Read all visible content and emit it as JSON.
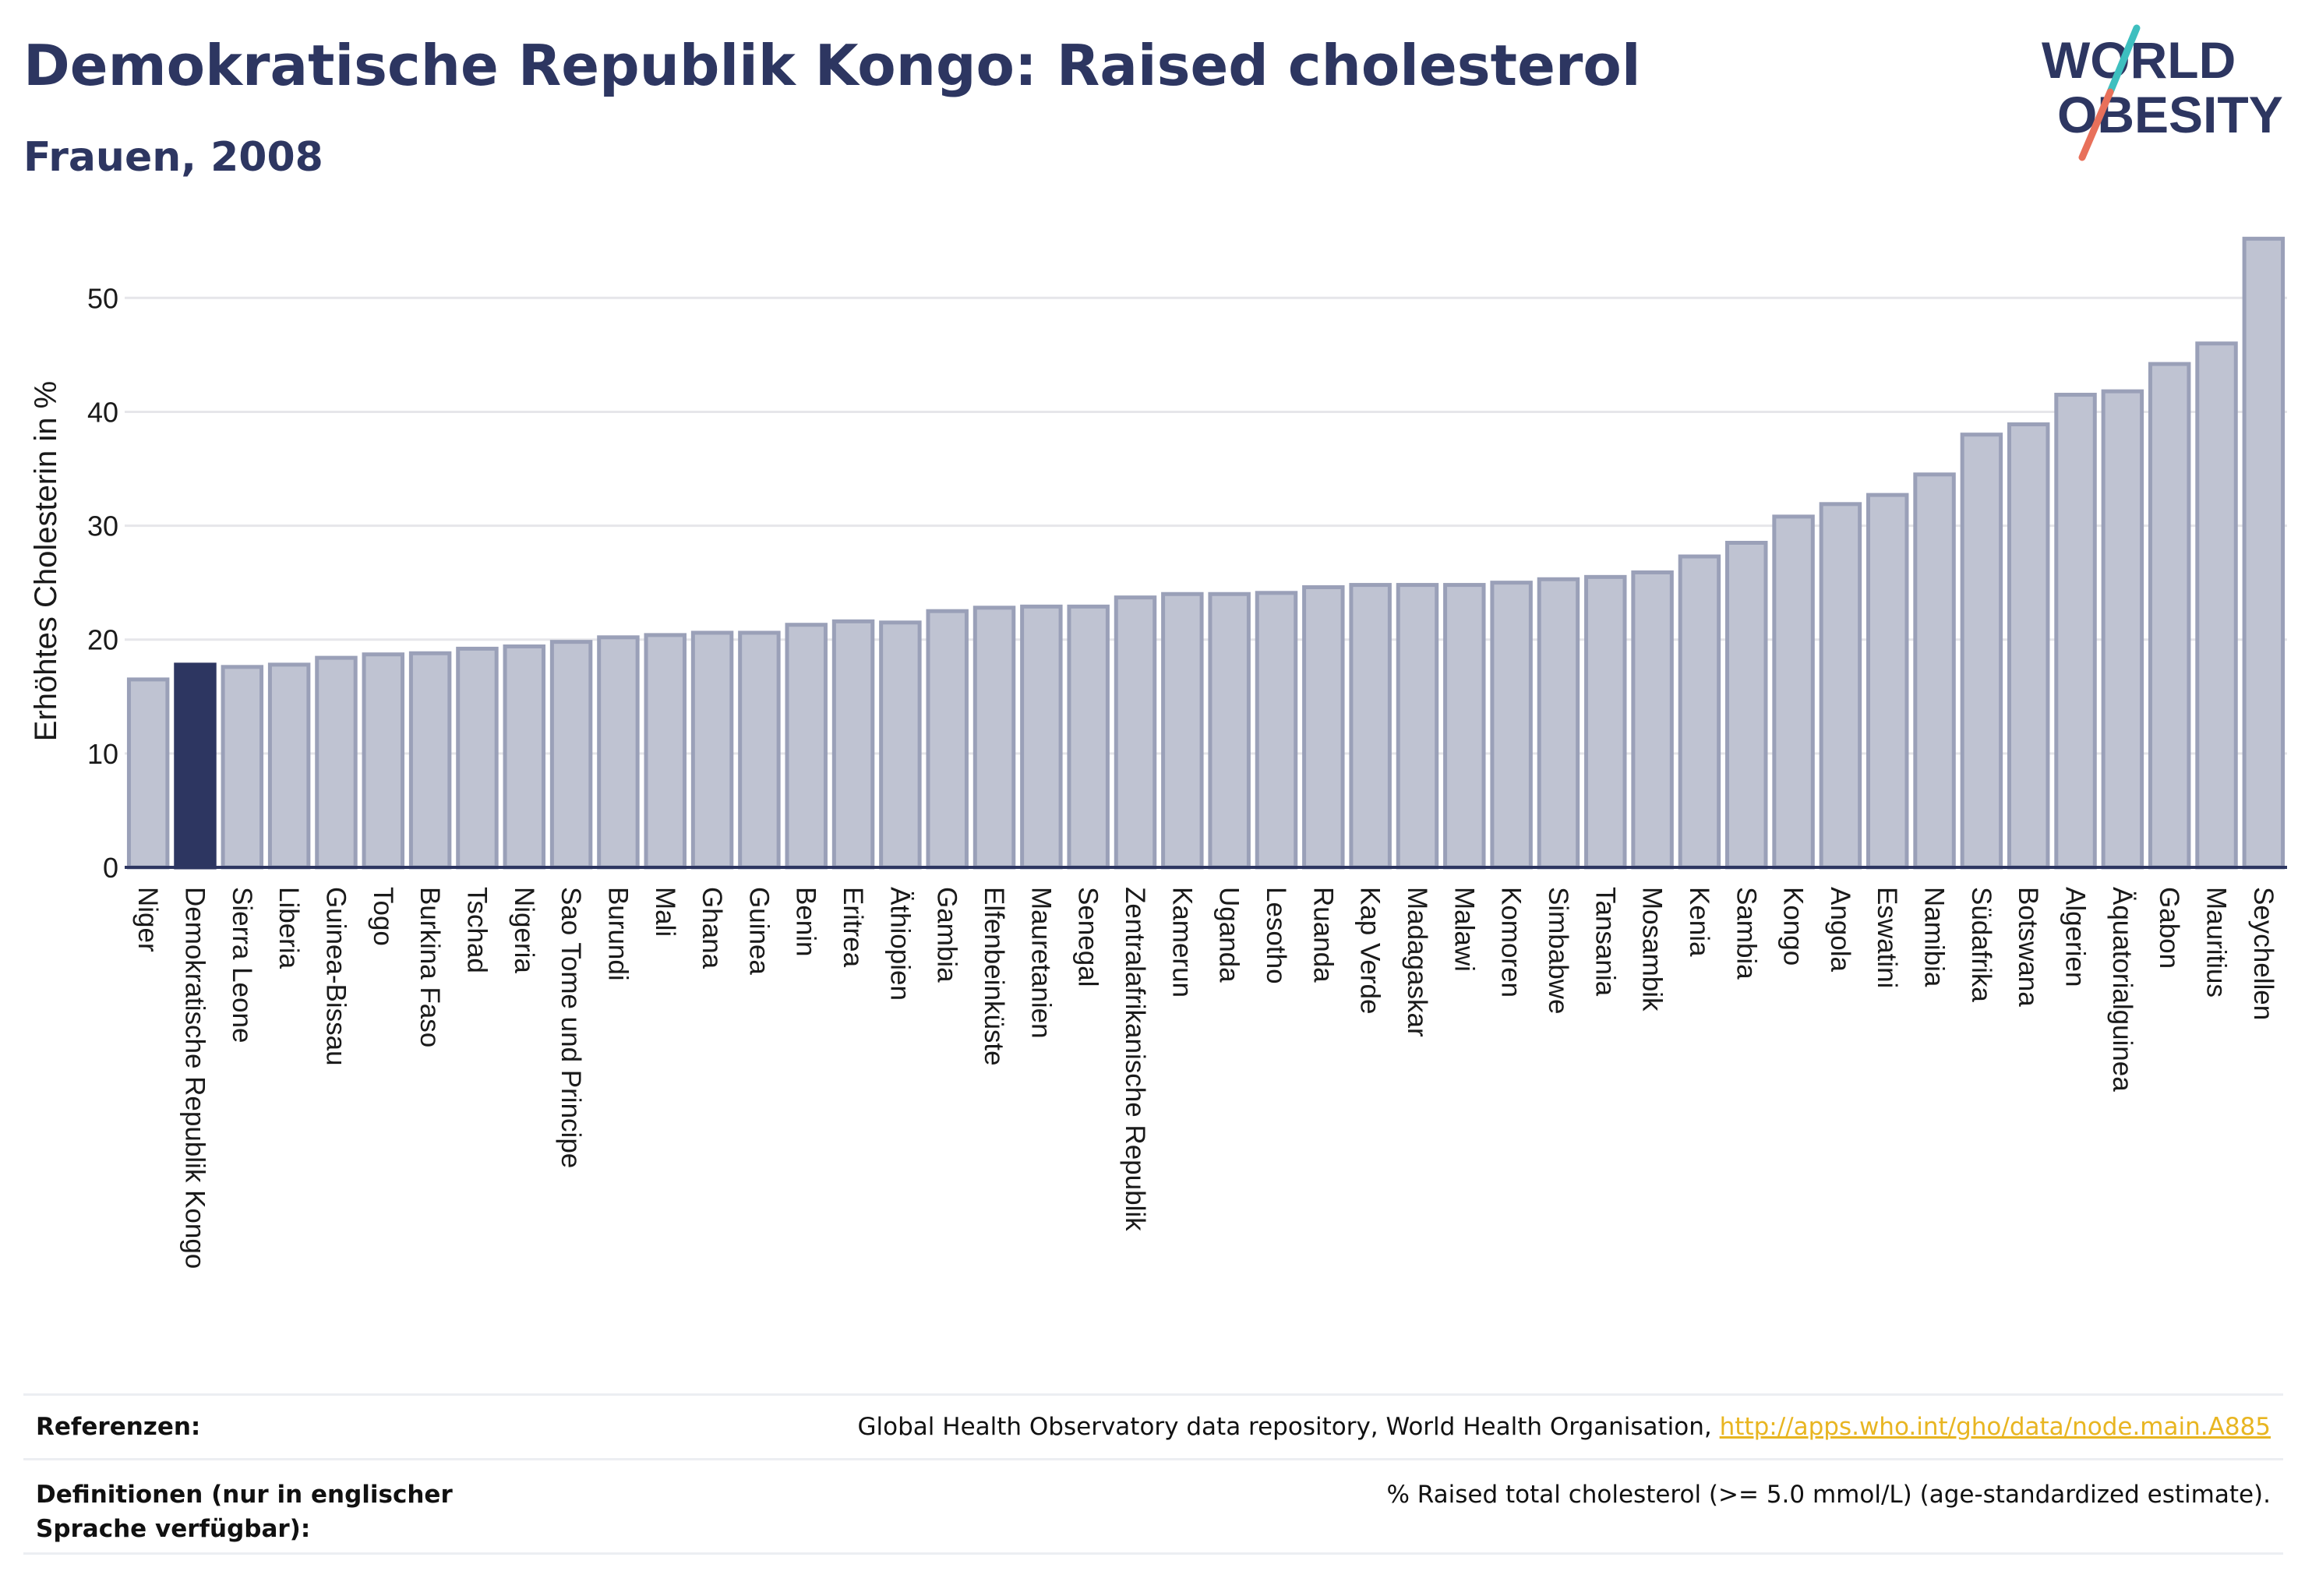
{
  "header": {
    "title": "Demokratische Republik Kongo: Raised cholesterol",
    "subtitle": "Frauen, 2008"
  },
  "logo": {
    "line1": "WORLD",
    "line2": "OBESITY"
  },
  "colors": {
    "highlight": "#2d3661",
    "bar_fill": "#bfc3d2",
    "bar_stroke": "#9aa0b8",
    "grid": "#e6e6ea",
    "logo_teal": "#3ebfbf",
    "logo_coral": "#e8705a",
    "link": "#e8b521"
  },
  "chart_data": {
    "type": "bar",
    "title": "Demokratische Republik Kongo: Raised cholesterol",
    "subtitle": "Frauen, 2008",
    "ylabel": "Erhöhtes Cholesterin in %",
    "xlabel": "",
    "ylim": [
      0,
      57
    ],
    "yticks": [
      0,
      10,
      20,
      30,
      40,
      50
    ],
    "grid": true,
    "highlight": "Demokratische Republik Kongo",
    "categories": [
      "Niger",
      "Demokratische Republik Kongo",
      "Sierra Leone",
      "Liberia",
      "Guinea-Bissau",
      "Togo",
      "Burkina Faso",
      "Tschad",
      "Nigeria",
      "Sao Tome und Principe",
      "Burundi",
      "Mali",
      "Ghana",
      "Guinea",
      "Benin",
      "Eritrea",
      "Äthiopien",
      "Gambia",
      "Elfenbeinküste",
      "Mauretanien",
      "Senegal",
      "Zentralafrikanische Republik",
      "Kamerun",
      "Uganda",
      "Lesotho",
      "Ruanda",
      "Kap Verde",
      "Madagaskar",
      "Malawi",
      "Komoren",
      "Simbabwe",
      "Tansania",
      "Mosambik",
      "Kenia",
      "Sambia",
      "Kongo",
      "Angola",
      "Eswatini",
      "Namibia",
      "Südafrika",
      "Botswana",
      "Algerien",
      "Äquatorialguinea",
      "Gabon",
      "Mauritius",
      "Seychellen"
    ],
    "values": [
      16.5,
      17.8,
      17.6,
      17.8,
      18.4,
      18.7,
      18.8,
      19.2,
      19.4,
      19.8,
      20.2,
      20.4,
      20.6,
      20.6,
      21.3,
      21.6,
      21.5,
      22.5,
      22.8,
      22.9,
      22.9,
      23.7,
      24.0,
      24.0,
      24.1,
      24.6,
      24.8,
      24.8,
      24.8,
      25.0,
      25.3,
      25.5,
      25.9,
      27.3,
      28.5,
      30.8,
      31.9,
      32.7,
      34.5,
      38.0,
      38.9,
      41.5,
      41.8,
      44.2,
      46.0,
      55.2
    ]
  },
  "footer": {
    "references_label": "Referenzen:",
    "references_text": "Global Health Observatory data repository, World Health Organisation,",
    "references_link": "http://apps.who.int/gho/data/node.main.A885",
    "definitions_label": "Definitionen (nur in englischer Sprache verfügbar):",
    "definitions_text": "% Raised total cholesterol (>= 5.0 mmol/L) (age-standardized estimate)."
  }
}
